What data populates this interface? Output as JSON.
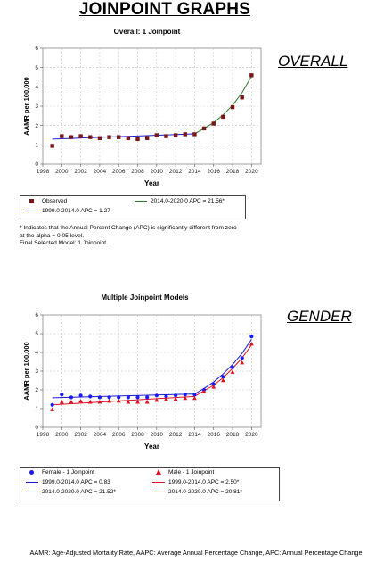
{
  "header": {
    "title": "JOINPOINT GRAPHS"
  },
  "side_labels": {
    "overall": "OVERALL",
    "gender": "GENDER"
  },
  "footnote": "AAMR: Age-Adjusted Mortality Rate, AAPC: Average Annual Percentage Change, APC: Annual Percentage Change",
  "chart_data": [
    {
      "type": "scatter",
      "title": "Overall: 1 Joinpoint",
      "xlabel": "Year",
      "ylabel": "AAMR per 100,000",
      "xlim": [
        1998,
        2021
      ],
      "ylim": [
        0,
        6
      ],
      "xticks": [
        1998,
        2000,
        2002,
        2004,
        2006,
        2008,
        2010,
        2012,
        2014,
        2016,
        2018,
        2020
      ],
      "yticks": [
        0,
        1,
        2,
        3,
        4,
        5,
        6
      ],
      "grid": true,
      "series": [
        {
          "name": "Observed",
          "kind": "points",
          "color": "#7a1518",
          "x": [
            1999,
            2000,
            2001,
            2002,
            2003,
            2004,
            2005,
            2006,
            2007,
            2008,
            2009,
            2010,
            2011,
            2012,
            2013,
            2014,
            2015,
            2016,
            2017,
            2018,
            2019,
            2020
          ],
          "y": [
            0.95,
            1.45,
            1.4,
            1.45,
            1.4,
            1.35,
            1.4,
            1.4,
            1.35,
            1.3,
            1.35,
            1.5,
            1.45,
            1.5,
            1.55,
            1.55,
            1.85,
            2.1,
            2.45,
            2.95,
            3.45,
            4.6
          ]
        },
        {
          "name": "1999.0-2014.0 APC = 1.27",
          "kind": "line",
          "color": "#1a1acc",
          "x": [
            1999,
            2014
          ],
          "y": [
            1.3,
            1.57
          ]
        },
        {
          "name": "2014.0-2020.0 APC = 21.56*",
          "kind": "line",
          "color": "#2a7a2a",
          "x": [
            2014,
            2015,
            2016,
            2017,
            2018,
            2019,
            2020
          ],
          "y": [
            1.57,
            1.85,
            2.15,
            2.55,
            3.05,
            3.7,
            4.55
          ]
        }
      ],
      "legend": {
        "position": "bottom",
        "items": [
          {
            "label": "Observed",
            "symbol": "square",
            "color": "#7a1518"
          },
          {
            "label": "2014.0-2020.0 APC = 21.56*",
            "symbol": "line",
            "color": "#2a7a2a"
          },
          {
            "label": "1999.0-2014.0 APC = 1.27",
            "symbol": "line",
            "color": "#1a1acc"
          }
        ]
      },
      "notes": [
        "* Indicates that the Annual Percent Change (APC) is significantly different from zero",
        "at the alpha = 0.05 level.",
        "Final Selected Model: 1 Joinpoint."
      ]
    },
    {
      "type": "scatter",
      "title": "Multiple Joinpoint Models",
      "xlabel": "Year",
      "ylabel": "AAMR per 100,000",
      "xlim": [
        1998,
        2021
      ],
      "ylim": [
        0,
        6
      ],
      "xticks": [
        1998,
        2000,
        2002,
        2004,
        2006,
        2008,
        2010,
        2012,
        2014,
        2016,
        2018,
        2020
      ],
      "yticks": [
        0,
        1,
        2,
        3,
        4,
        5,
        6
      ],
      "grid": true,
      "series": [
        {
          "name": "Female - 1 Joinpoint",
          "kind": "points",
          "marker": "circle",
          "color": "#1a1aff",
          "x": [
            1999,
            2000,
            2001,
            2002,
            2003,
            2004,
            2005,
            2006,
            2007,
            2008,
            2009,
            2010,
            2011,
            2012,
            2013,
            2014,
            2015,
            2016,
            2017,
            2018,
            2019,
            2020
          ],
          "y": [
            1.2,
            1.75,
            1.6,
            1.7,
            1.65,
            1.6,
            1.6,
            1.6,
            1.6,
            1.6,
            1.6,
            1.7,
            1.65,
            1.7,
            1.75,
            1.75,
            2.0,
            2.3,
            2.7,
            3.2,
            3.7,
            4.85
          ]
        },
        {
          "name": "Male - 1 Joinpoint",
          "kind": "points",
          "marker": "triangle",
          "color": "#e01020",
          "x": [
            1999,
            2000,
            2001,
            2002,
            2003,
            2004,
            2005,
            2006,
            2007,
            2008,
            2009,
            2010,
            2011,
            2012,
            2013,
            2014,
            2015,
            2016,
            2017,
            2018,
            2019,
            2020
          ],
          "y": [
            0.95,
            1.35,
            1.35,
            1.4,
            1.35,
            1.35,
            1.4,
            1.4,
            1.35,
            1.35,
            1.35,
            1.45,
            1.5,
            1.5,
            1.55,
            1.55,
            1.9,
            2.15,
            2.5,
            2.95,
            3.45,
            4.45
          ]
        },
        {
          "name": "1999.0-2014.0 APC = 0.83",
          "kind": "line",
          "color": "#1a1acc",
          "x": [
            1999,
            2014
          ],
          "y": [
            1.58,
            1.78
          ]
        },
        {
          "name": "2014.0-2020.0 APC = 21.52*",
          "kind": "line",
          "color": "#1a1acc",
          "x": [
            2014,
            2015,
            2016,
            2017,
            2018,
            2019,
            2020
          ],
          "y": [
            1.78,
            2.08,
            2.42,
            2.85,
            3.35,
            3.95,
            4.7
          ]
        },
        {
          "name": "1999.0-2014.0 APC = 2.50*",
          "kind": "line",
          "color": "#e01020",
          "x": [
            1999,
            2014
          ],
          "y": [
            1.2,
            1.65
          ]
        },
        {
          "name": "2014.0-2020.0 APC = 20.81*",
          "kind": "line",
          "color": "#e01020",
          "x": [
            2014,
            2015,
            2016,
            2017,
            2018,
            2019,
            2020
          ],
          "y": [
            1.65,
            1.95,
            2.25,
            2.65,
            3.15,
            3.7,
            4.4
          ]
        }
      ],
      "legend": {
        "position": "bottom",
        "items": [
          {
            "label": "Female - 1 Joinpoint",
            "symbol": "circle",
            "color": "#1a1aff"
          },
          {
            "label": "Male - 1 Joinpoint",
            "symbol": "triangle",
            "color": "#e01020"
          },
          {
            "label": "1999.0-2014.0 APC = 0.83",
            "symbol": "line",
            "color": "#1a1acc"
          },
          {
            "label": "1999.0-2014.0 APC = 2.50*",
            "symbol": "line",
            "color": "#e01020"
          },
          {
            "label": "2014.0-2020.0 APC = 21.52*",
            "symbol": "line",
            "color": "#1a1acc"
          },
          {
            "label": "2014.0-2020.0 APC = 20.81*",
            "symbol": "line",
            "color": "#e01020"
          }
        ]
      }
    }
  ]
}
